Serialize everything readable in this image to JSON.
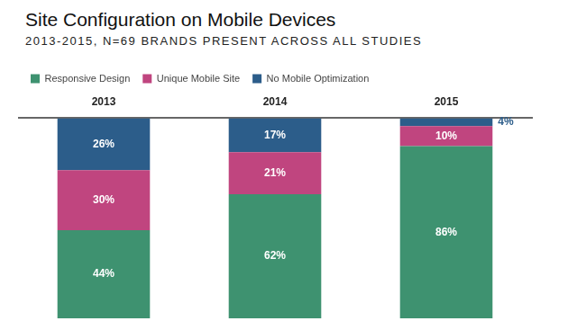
{
  "chart_data": {
    "type": "bar",
    "title": "Site Configuration on Mobile Devices",
    "subtitle": "2013-2015, N=69 BRANDS PRESENT ACROSS ALL STUDIES",
    "categories": [
      "2013",
      "2014",
      "2015"
    ],
    "series": [
      {
        "name": "Responsive Design",
        "color": "#3e9270",
        "values": [
          44,
          62,
          86
        ],
        "value_labels": [
          "44%",
          "62%",
          "86%"
        ]
      },
      {
        "name": "Unique Mobile Site",
        "color": "#c0457f",
        "values": [
          30,
          21,
          10
        ],
        "value_labels": [
          "30%",
          "21%",
          "10%"
        ]
      },
      {
        "name": "No Mobile Optimization",
        "color": "#2c5d8a",
        "values": [
          26,
          17,
          4
        ],
        "value_labels": [
          "26%",
          "17%",
          "4%"
        ]
      }
    ],
    "ylim": [
      0,
      100
    ],
    "stacked": true,
    "data_labels": true,
    "legend": "top left",
    "grid": false,
    "tick_labels": "x"
  }
}
